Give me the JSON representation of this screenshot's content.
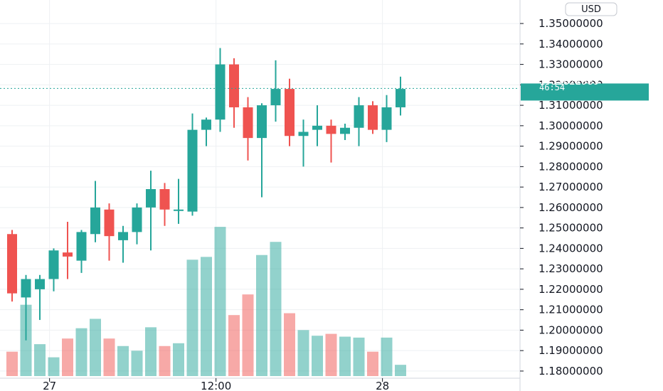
{
  "currency": "USD",
  "price_tag": {
    "price": "1.31822989",
    "countdown": "46:54"
  },
  "colors": {
    "up": "#26a69a",
    "down": "#ef5350",
    "grid": "#eef0f3",
    "tag_bg": "#26a69a",
    "axis_border": "#d1d4dc"
  },
  "chart_data": {
    "type": "candlestick",
    "yticks": [
      1.18,
      1.19,
      1.2,
      1.21,
      1.22,
      1.23,
      1.24,
      1.25,
      1.26,
      1.27,
      1.28,
      1.29,
      1.3,
      1.31,
      1.32,
      1.33,
      1.34,
      1.35
    ],
    "ytick_labels": [
      "1.18000000",
      "1.19000000",
      "1.20000000",
      "1.21000000",
      "1.22000000",
      "1.23000000",
      "1.24000000",
      "1.25000000",
      "1.26000000",
      "1.27000000",
      "1.28000000",
      "1.29000000",
      "1.30000000",
      "1.31000000",
      "1.32000000",
      "1.33000000",
      "1.34000000",
      "1.35000000"
    ],
    "xticks": [
      {
        "label": "27",
        "index": 2.7
      },
      {
        "label": "12:00",
        "index": 14.7
      },
      {
        "label": "28",
        "index": 26.7
      }
    ],
    "ylim": [
      1.1765,
      1.3615
    ],
    "volume_scale_max": 1.0,
    "last_price": 1.31822989,
    "candles": [
      {
        "o": 1.247,
        "h": 1.249,
        "l": 1.214,
        "c": 1.218,
        "v": 0.26
      },
      {
        "o": 1.216,
        "h": 1.227,
        "l": 1.195,
        "c": 1.225,
        "v": 0.76
      },
      {
        "o": 1.22,
        "h": 1.227,
        "l": 1.205,
        "c": 1.225,
        "v": 0.34
      },
      {
        "o": 1.225,
        "h": 1.24,
        "l": 1.219,
        "c": 1.239,
        "v": 0.2
      },
      {
        "o": 1.238,
        "h": 1.253,
        "l": 1.225,
        "c": 1.236,
        "v": 0.4
      },
      {
        "o": 1.234,
        "h": 1.249,
        "l": 1.228,
        "c": 1.248,
        "v": 0.51
      },
      {
        "o": 1.247,
        "h": 1.273,
        "l": 1.243,
        "c": 1.26,
        "v": 0.61
      },
      {
        "o": 1.259,
        "h": 1.262,
        "l": 1.234,
        "c": 1.246,
        "v": 0.4
      },
      {
        "o": 1.244,
        "h": 1.251,
        "l": 1.233,
        "c": 1.248,
        "v": 0.32
      },
      {
        "o": 1.248,
        "h": 1.262,
        "l": 1.242,
        "c": 1.26,
        "v": 0.27
      },
      {
        "o": 1.26,
        "h": 1.278,
        "l": 1.239,
        "c": 1.269,
        "v": 0.52
      },
      {
        "o": 1.269,
        "h": 1.272,
        "l": 1.251,
        "c": 1.259,
        "v": 0.32
      },
      {
        "o": 1.259,
        "h": 1.274,
        "l": 1.252,
        "c": 1.259,
        "v": 0.35
      },
      {
        "o": 1.258,
        "h": 1.306,
        "l": 1.256,
        "c": 1.298,
        "v": 1.24
      },
      {
        "o": 1.298,
        "h": 1.304,
        "l": 1.29,
        "c": 1.303,
        "v": 1.27
      },
      {
        "o": 1.303,
        "h": 1.338,
        "l": 1.297,
        "c": 1.33,
        "v": 1.59
      },
      {
        "o": 1.33,
        "h": 1.333,
        "l": 1.299,
        "c": 1.309,
        "v": 0.65
      },
      {
        "o": 1.309,
        "h": 1.314,
        "l": 1.283,
        "c": 1.294,
        "v": 0.87
      },
      {
        "o": 1.294,
        "h": 1.311,
        "l": 1.265,
        "c": 1.31,
        "v": 1.29
      },
      {
        "o": 1.31,
        "h": 1.332,
        "l": 1.302,
        "c": 1.318,
        "v": 1.43
      },
      {
        "o": 1.318,
        "h": 1.323,
        "l": 1.29,
        "c": 1.295,
        "v": 0.67
      },
      {
        "o": 1.295,
        "h": 1.303,
        "l": 1.28,
        "c": 1.297,
        "v": 0.49
      },
      {
        "o": 1.298,
        "h": 1.31,
        "l": 1.29,
        "c": 1.3,
        "v": 0.43
      },
      {
        "o": 1.3,
        "h": 1.303,
        "l": 1.282,
        "c": 1.296,
        "v": 0.45
      },
      {
        "o": 1.296,
        "h": 1.301,
        "l": 1.293,
        "c": 1.299,
        "v": 0.42
      },
      {
        "o": 1.299,
        "h": 1.314,
        "l": 1.29,
        "c": 1.31,
        "v": 0.41
      },
      {
        "o": 1.31,
        "h": 1.312,
        "l": 1.296,
        "c": 1.298,
        "v": 0.26
      },
      {
        "o": 1.298,
        "h": 1.315,
        "l": 1.292,
        "c": 1.309,
        "v": 0.41
      },
      {
        "o": 1.309,
        "h": 1.324,
        "l": 1.305,
        "c": 1.318,
        "v": 0.12
      }
    ]
  }
}
